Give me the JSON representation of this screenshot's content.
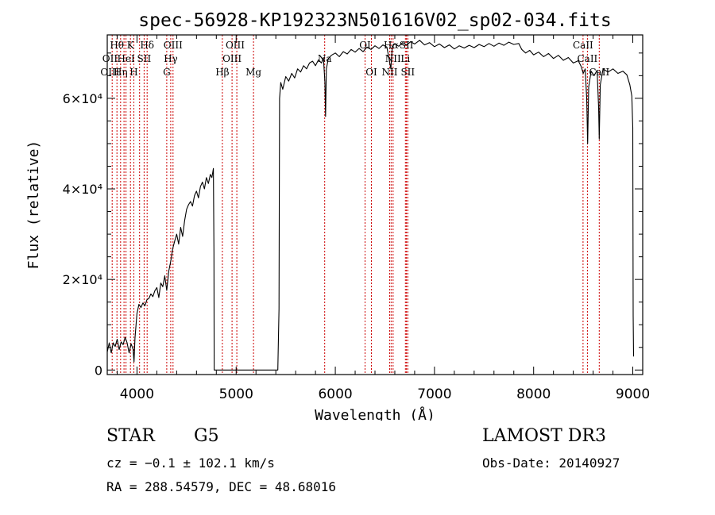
{
  "chart_data": {
    "type": "line",
    "title": "spec-56928-KP192323N501616V02_sp02-034.fits",
    "xlabel": "Wavelength (Å)",
    "ylabel": "Flux (relative)",
    "xlim": [
      3700,
      9100
    ],
    "ylim": [
      -1000,
      74000
    ],
    "x_ticks": [
      {
        "value": 4000,
        "label": "4000"
      },
      {
        "value": 5000,
        "label": "5000"
      },
      {
        "value": 6000,
        "label": "6000"
      },
      {
        "value": 7000,
        "label": "7000"
      },
      {
        "value": 8000,
        "label": "8000"
      },
      {
        "value": 9000,
        "label": "9000"
      }
    ],
    "y_ticks": [
      {
        "value": 0,
        "label": "0"
      },
      {
        "value": 20000,
        "label": "2×10⁴"
      },
      {
        "value": 40000,
        "label": "4×10⁴"
      },
      {
        "value": 60000,
        "label": "6×10⁴"
      }
    ],
    "series": [
      {
        "name": "flux",
        "points": [
          [
            3700,
            4000
          ],
          [
            3720,
            6000
          ],
          [
            3740,
            3800
          ],
          [
            3760,
            6000
          ],
          [
            3780,
            5200
          ],
          [
            3800,
            6800
          ],
          [
            3820,
            4500
          ],
          [
            3840,
            6200
          ],
          [
            3860,
            5600
          ],
          [
            3880,
            7200
          ],
          [
            3900,
            6000
          ],
          [
            3920,
            3800
          ],
          [
            3940,
            5800
          ],
          [
            3960,
            4600
          ],
          [
            3970,
            1800
          ],
          [
            3980,
            7000
          ],
          [
            4000,
            12500
          ],
          [
            4020,
            14500
          ],
          [
            4040,
            13800
          ],
          [
            4060,
            14800
          ],
          [
            4080,
            14200
          ],
          [
            4100,
            15500
          ],
          [
            4120,
            15800
          ],
          [
            4140,
            16800
          ],
          [
            4160,
            16200
          ],
          [
            4180,
            17500
          ],
          [
            4200,
            18200
          ],
          [
            4220,
            16000
          ],
          [
            4240,
            19200
          ],
          [
            4260,
            18400
          ],
          [
            4280,
            20800
          ],
          [
            4300,
            17600
          ],
          [
            4320,
            21800
          ],
          [
            4340,
            24000
          ],
          [
            4360,
            26800
          ],
          [
            4380,
            28500
          ],
          [
            4400,
            30000
          ],
          [
            4420,
            27800
          ],
          [
            4440,
            31500
          ],
          [
            4460,
            29500
          ],
          [
            4480,
            33000
          ],
          [
            4500,
            35500
          ],
          [
            4520,
            36500
          ],
          [
            4540,
            37200
          ],
          [
            4560,
            36200
          ],
          [
            4580,
            38500
          ],
          [
            4600,
            39500
          ],
          [
            4620,
            38000
          ],
          [
            4640,
            40500
          ],
          [
            4660,
            41500
          ],
          [
            4680,
            40000
          ],
          [
            4700,
            42500
          ],
          [
            4720,
            41200
          ],
          [
            4740,
            43200
          ],
          [
            4755,
            42500
          ],
          [
            4770,
            44500
          ],
          [
            4776,
            26000
          ],
          [
            4778,
            0
          ],
          [
            5420,
            0
          ],
          [
            5432,
            13500
          ],
          [
            5438,
            60000
          ],
          [
            5450,
            63500
          ],
          [
            5470,
            62000
          ],
          [
            5500,
            64800
          ],
          [
            5530,
            63800
          ],
          [
            5560,
            65500
          ],
          [
            5590,
            64500
          ],
          [
            5620,
            66500
          ],
          [
            5650,
            65800
          ],
          [
            5680,
            67200
          ],
          [
            5710,
            66500
          ],
          [
            5740,
            67800
          ],
          [
            5770,
            68200
          ],
          [
            5800,
            67200
          ],
          [
            5830,
            68500
          ],
          [
            5860,
            67800
          ],
          [
            5880,
            69000
          ],
          [
            5895,
            63500
          ],
          [
            5902,
            56000
          ],
          [
            5910,
            66500
          ],
          [
            5930,
            68800
          ],
          [
            5960,
            69500
          ],
          [
            6000,
            70000
          ],
          [
            6040,
            69200
          ],
          [
            6080,
            70300
          ],
          [
            6120,
            69800
          ],
          [
            6160,
            70800
          ],
          [
            6200,
            70200
          ],
          [
            6240,
            71000
          ],
          [
            6280,
            70300
          ],
          [
            6320,
            71300
          ],
          [
            6360,
            70800
          ],
          [
            6400,
            71600
          ],
          [
            6440,
            71000
          ],
          [
            6480,
            71800
          ],
          [
            6520,
            71300
          ],
          [
            6560,
            66500
          ],
          [
            6575,
            71500
          ],
          [
            6600,
            72000
          ],
          [
            6640,
            71500
          ],
          [
            6680,
            72300
          ],
          [
            6720,
            71800
          ],
          [
            6760,
            72500
          ],
          [
            6800,
            72000
          ],
          [
            6850,
            72800
          ],
          [
            6900,
            71800
          ],
          [
            6950,
            72300
          ],
          [
            7000,
            71400
          ],
          [
            7050,
            72000
          ],
          [
            7100,
            71200
          ],
          [
            7150,
            71800
          ],
          [
            7200,
            70900
          ],
          [
            7250,
            71600
          ],
          [
            7300,
            71100
          ],
          [
            7350,
            71700
          ],
          [
            7400,
            71200
          ],
          [
            7450,
            71900
          ],
          [
            7500,
            71400
          ],
          [
            7550,
            72100
          ],
          [
            7600,
            71500
          ],
          [
            7650,
            72200
          ],
          [
            7700,
            71700
          ],
          [
            7750,
            72400
          ],
          [
            7800,
            71900
          ],
          [
            7850,
            72100
          ],
          [
            7880,
            70800
          ],
          [
            7920,
            70000
          ],
          [
            7960,
            70600
          ],
          [
            8000,
            69600
          ],
          [
            8050,
            70200
          ],
          [
            8100,
            69200
          ],
          [
            8150,
            69900
          ],
          [
            8200,
            68800
          ],
          [
            8250,
            69500
          ],
          [
            8300,
            68400
          ],
          [
            8350,
            69000
          ],
          [
            8400,
            67800
          ],
          [
            8450,
            68300
          ],
          [
            8480,
            67000
          ],
          [
            8500,
            65500
          ],
          [
            8520,
            66500
          ],
          [
            8535,
            60000
          ],
          [
            8545,
            50000
          ],
          [
            8555,
            62500
          ],
          [
            8580,
            66000
          ],
          [
            8610,
            65000
          ],
          [
            8640,
            66200
          ],
          [
            8655,
            58000
          ],
          [
            8662,
            51000
          ],
          [
            8672,
            63000
          ],
          [
            8700,
            66500
          ],
          [
            8750,
            65800
          ],
          [
            8800,
            66500
          ],
          [
            8850,
            65500
          ],
          [
            8900,
            66000
          ],
          [
            8940,
            65200
          ],
          [
            8970,
            63000
          ],
          [
            8990,
            60500
          ],
          [
            9000,
            53500
          ],
          [
            9004,
            12000
          ],
          [
            9008,
            3000
          ]
        ]
      }
    ],
    "line_marks": [
      {
        "wavelength": 3750
      },
      {
        "wavelength": 3798
      },
      {
        "wavelength": 3835
      },
      {
        "wavelength": 3869
      },
      {
        "wavelength": 3889
      },
      {
        "wavelength": 3934
      },
      {
        "wavelength": 3968
      },
      {
        "wavelength": 4026
      },
      {
        "wavelength": 4072
      },
      {
        "wavelength": 4102
      },
      {
        "wavelength": 4300
      },
      {
        "wavelength": 4340
      },
      {
        "wavelength": 4363
      },
      {
        "wavelength": 4861
      },
      {
        "wavelength": 4959
      },
      {
        "wavelength": 5007
      },
      {
        "wavelength": 5175
      },
      {
        "wavelength": 5893
      },
      {
        "wavelength": 6300
      },
      {
        "wavelength": 6364
      },
      {
        "wavelength": 6548
      },
      {
        "wavelength": 6563
      },
      {
        "wavelength": 6583
      },
      {
        "wavelength": 6707
      },
      {
        "wavelength": 6717
      },
      {
        "wavelength": 6731
      },
      {
        "wavelength": 8498
      },
      {
        "wavelength": 8542
      },
      {
        "wavelength": 8662
      }
    ],
    "line_labels": [
      {
        "text": "Hθ",
        "wavelength": 3798,
        "row": 1
      },
      {
        "text": "K",
        "wavelength": 3934,
        "row": 1
      },
      {
        "text": "Hδ",
        "wavelength": 4102,
        "row": 1
      },
      {
        "text": "OIII",
        "wavelength": 4363,
        "row": 1
      },
      {
        "text": "OIII",
        "wavelength": 4990,
        "row": 1
      },
      {
        "text": "OI",
        "wavelength": 6300,
        "row": 1
      },
      {
        "text": "Hα",
        "wavelength": 6563,
        "row": 1
      },
      {
        "text": "SII",
        "wavelength": 6717,
        "row": 1
      },
      {
        "text": "CaII",
        "wavelength": 8498,
        "row": 1
      },
      {
        "text": "OII",
        "wavelength": 3727,
        "row": 2
      },
      {
        "text": "HeI",
        "wavelength": 3889,
        "row": 2
      },
      {
        "text": "SII",
        "wavelength": 4072,
        "row": 2
      },
      {
        "text": "Hγ",
        "wavelength": 4340,
        "row": 2
      },
      {
        "text": "OIII",
        "wavelength": 4959,
        "row": 2
      },
      {
        "text": "Na",
        "wavelength": 5893,
        "row": 2
      },
      {
        "text": "NII",
        "wavelength": 6583,
        "row": 2
      },
      {
        "text": "Li",
        "wavelength": 6707,
        "row": 2
      },
      {
        "text": "CaII",
        "wavelength": 8542,
        "row": 2
      },
      {
        "text": "OIII",
        "wavelength": 3727,
        "row": 3
      },
      {
        "text": "Hη",
        "wavelength": 3835,
        "row": 3
      },
      {
        "text": "H",
        "wavelength": 3968,
        "row": 3
      },
      {
        "text": "G",
        "wavelength": 4300,
        "row": 3
      },
      {
        "text": "Hβ",
        "wavelength": 4861,
        "row": 3
      },
      {
        "text": "Mg",
        "wavelength": 5175,
        "row": 3
      },
      {
        "text": "OI",
        "wavelength": 6364,
        "row": 3
      },
      {
        "text": "NII",
        "wavelength": 6548,
        "row": 3
      },
      {
        "text": "SII",
        "wavelength": 6731,
        "row": 3
      },
      {
        "text": "CaII",
        "wavelength": 8662,
        "row": 3
      }
    ],
    "grid": false,
    "legend": "none"
  },
  "info": {
    "object_class": "STAR",
    "subclass": "G5",
    "survey": "LAMOST DR3",
    "redshift": "cz = −0.1 ± 102.1 km/s",
    "obs_date": "Obs-Date: 20140927",
    "coordinates": "RA = 288.54579, DEC =  48.68016"
  },
  "colors": {
    "line": "#000000",
    "marker": "#cc0000",
    "background": "#ffffff"
  }
}
